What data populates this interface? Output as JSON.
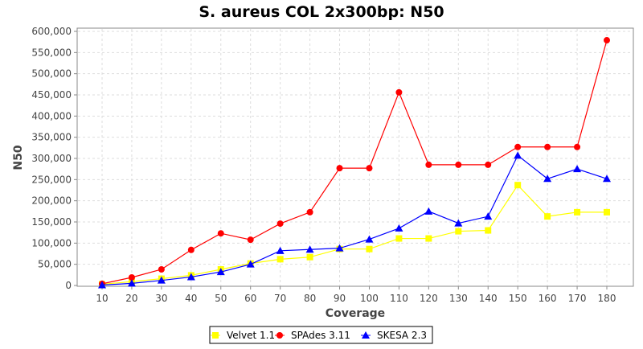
{
  "chart_data": {
    "type": "line",
    "title": "S. aureus COL 2x300bp: N50",
    "xlabel": "Coverage",
    "ylabel": "N50",
    "x": [
      10,
      20,
      30,
      40,
      50,
      60,
      70,
      80,
      90,
      100,
      110,
      120,
      130,
      140,
      150,
      160,
      170,
      180
    ],
    "ylim": [
      0,
      600000
    ],
    "yticks": [
      0,
      50000,
      100000,
      150000,
      200000,
      250000,
      300000,
      350000,
      400000,
      450000,
      500000,
      550000,
      600000
    ],
    "ytick_labels": [
      "0",
      "50,000",
      "100,000",
      "150,000",
      "200,000",
      "250,000",
      "300,000",
      "350,000",
      "400,000",
      "450,000",
      "500,000",
      "550,000",
      "600,000"
    ],
    "grid": true,
    "legend": "bottom",
    "series": [
      {
        "name": "Velvet 1.1",
        "color": "#ffff00",
        "marker": "square",
        "values": [
          3000,
          9000,
          16000,
          24000,
          38000,
          52000,
          62000,
          67000,
          86000,
          86000,
          111000,
          111000,
          128000,
          130000,
          237000,
          163000,
          173000,
          173000
        ]
      },
      {
        "name": "SPAdes 3.11",
        "color": "#ff0000",
        "marker": "circle",
        "values": [
          4000,
          19000,
          38000,
          84000,
          123000,
          108000,
          146000,
          173000,
          277000,
          277000,
          456000,
          285000,
          285000,
          285000,
          327000,
          327000,
          327000,
          579000
        ]
      },
      {
        "name": "SKESA 2.3",
        "color": "#0000ff",
        "marker": "triangle",
        "values": [
          1000,
          5000,
          12000,
          20000,
          32000,
          50000,
          82000,
          85000,
          88000,
          109000,
          135000,
          175000,
          147000,
          163000,
          307000,
          252000,
          275000,
          252000
        ]
      }
    ]
  }
}
